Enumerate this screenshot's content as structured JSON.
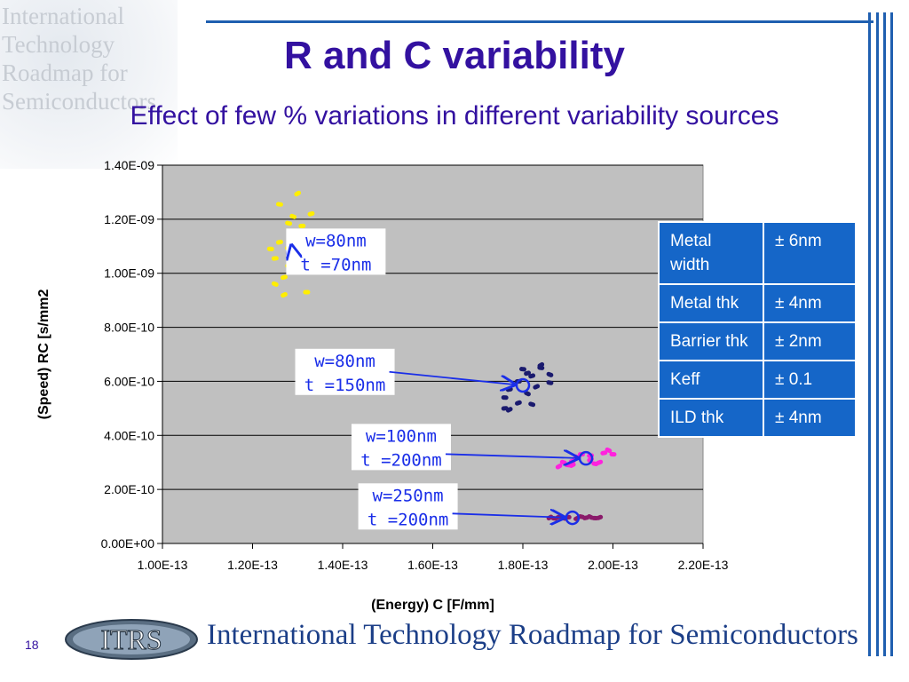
{
  "slide": {
    "title": "R and C variability",
    "subtitle": "Effect of few % variations in different variability sources",
    "slide_number": "18",
    "footer_text": "International Technology Roadmap for Semiconductors",
    "logo_text": "ITRS",
    "corner_logo_lines": [
      "International",
      "Technology",
      "Roadmap for",
      "Semiconductors"
    ]
  },
  "chart_data": {
    "type": "scatter",
    "xlabel": "(Energy) C [F/mm]",
    "ylabel": "(Speed) RC [s/mm2",
    "xlim": [
      1e-13,
      2.2e-13
    ],
    "ylim": [
      0,
      1.4e-09
    ],
    "xticks": [
      "1.00E-13",
      "1.20E-13",
      "1.40E-13",
      "1.60E-13",
      "1.80E-13",
      "2.00E-13",
      "2.20E-13"
    ],
    "yticks": [
      "0.00E+00",
      "2.00E-10",
      "4.00E-10",
      "6.00E-10",
      "8.00E-10",
      "1.00E-09",
      "1.20E-09",
      "1.40E-09"
    ],
    "grid": "horizontal",
    "legend": "none",
    "series": [
      {
        "color": "#ffee00",
        "nominal": {
          "x": 1.29e-13,
          "y": 1.075e-09
        },
        "points": [
          {
            "x": 1.3e-13,
            "y": 1.295e-09
          },
          {
            "x": 1.26e-13,
            "y": 1.255e-09
          },
          {
            "x": 1.33e-13,
            "y": 1.22e-09
          },
          {
            "x": 1.29e-13,
            "y": 1.21e-09
          },
          {
            "x": 1.31e-13,
            "y": 1.175e-09
          },
          {
            "x": 1.29e-13,
            "y": 1.15e-09
          },
          {
            "x": 1.32e-13,
            "y": 1.145e-09
          },
          {
            "x": 1.26e-13,
            "y": 1.115e-09
          },
          {
            "x": 1.3e-13,
            "y": 1.12e-09
          },
          {
            "x": 1.24e-13,
            "y": 1.09e-09
          },
          {
            "x": 1.28e-13,
            "y": 1.095e-09
          },
          {
            "x": 1.31e-13,
            "y": 1.06e-09
          },
          {
            "x": 1.25e-13,
            "y": 1.055e-09
          },
          {
            "x": 1.28e-13,
            "y": 1.03e-09
          },
          {
            "x": 1.3e-13,
            "y": 1.01e-09
          },
          {
            "x": 1.27e-13,
            "y": 9.85e-10
          },
          {
            "x": 1.25e-13,
            "y": 9.6e-10
          },
          {
            "x": 1.32e-13,
            "y": 9.3e-10
          },
          {
            "x": 1.27e-13,
            "y": 9.2e-10
          },
          {
            "x": 1.28e-13,
            "y": 1.185e-09
          }
        ]
      },
      {
        "color": "#1a1a6e",
        "nominal": {
          "x": 1.8e-13,
          "y": 5.85e-10
        },
        "points": [
          {
            "x": 1.84e-13,
            "y": 6.6e-10
          },
          {
            "x": 1.8e-13,
            "y": 6.45e-10
          },
          {
            "x": 1.82e-13,
            "y": 6.2e-10
          },
          {
            "x": 1.86e-13,
            "y": 6.25e-10
          },
          {
            "x": 1.79e-13,
            "y": 6e-10
          },
          {
            "x": 1.83e-13,
            "y": 5.8e-10
          },
          {
            "x": 1.86e-13,
            "y": 5.95e-10
          },
          {
            "x": 1.77e-13,
            "y": 5.7e-10
          },
          {
            "x": 1.81e-13,
            "y": 5.55e-10
          },
          {
            "x": 1.76e-13,
            "y": 5.4e-10
          },
          {
            "x": 1.79e-13,
            "y": 5.2e-10
          },
          {
            "x": 1.82e-13,
            "y": 5.15e-10
          },
          {
            "x": 1.76e-13,
            "y": 5e-10
          },
          {
            "x": 1.77e-13,
            "y": 4.95e-10
          },
          {
            "x": 1.84e-13,
            "y": 6.5e-10
          },
          {
            "x": 1.81e-13,
            "y": 6.3e-10
          }
        ]
      },
      {
        "color": "#ff22dd",
        "nominal": {
          "x": 1.94e-13,
          "y": 3.15e-10
        },
        "points": [
          {
            "x": 1.88e-13,
            "y": 2.85e-10
          },
          {
            "x": 1.9e-13,
            "y": 2.9e-10
          },
          {
            "x": 1.91e-13,
            "y": 3.05e-10
          },
          {
            "x": 1.92e-13,
            "y": 3.2e-10
          },
          {
            "x": 1.93e-13,
            "y": 3.3e-10
          },
          {
            "x": 1.95e-13,
            "y": 3.1e-10
          },
          {
            "x": 1.96e-13,
            "y": 2.95e-10
          },
          {
            "x": 1.98e-13,
            "y": 3.35e-10
          },
          {
            "x": 1.99e-13,
            "y": 3.45e-10
          },
          {
            "x": 2e-13,
            "y": 3.3e-10
          },
          {
            "x": 1.97e-13,
            "y": 3e-10
          },
          {
            "x": 1.89e-13,
            "y": 3e-10
          },
          {
            "x": 1.95e-13,
            "y": 3.25e-10
          },
          {
            "x": 1.91e-13,
            "y": 2.9e-10
          }
        ]
      },
      {
        "color": "#8a1a6a",
        "nominal": {
          "x": 1.91e-13,
          "y": 9.5e-11
        },
        "points": [
          {
            "x": 1.86e-13,
            "y": 9.6e-11
          },
          {
            "x": 1.87e-13,
            "y": 9.3e-11
          },
          {
            "x": 1.88e-13,
            "y": 9.8e-11
          },
          {
            "x": 1.89e-13,
            "y": 9.4e-11
          },
          {
            "x": 1.9e-13,
            "y": 9.7e-11
          },
          {
            "x": 1.92e-13,
            "y": 9.3e-11
          },
          {
            "x": 1.93e-13,
            "y": 9.9e-11
          },
          {
            "x": 1.94e-13,
            "y": 9.5e-11
          },
          {
            "x": 1.95e-13,
            "y": 9.8e-11
          },
          {
            "x": 1.96e-13,
            "y": 9.4e-11
          },
          {
            "x": 1.97e-13,
            "y": 9.6e-11
          }
        ]
      }
    ],
    "annotations": [
      {
        "lines": [
          "w=80nm",
          "t =70nm"
        ],
        "text_x": 1.385e-13,
        "text_y": 1.08e-09,
        "target_x": 1.29e-13,
        "target_y": 1.075e-09
      },
      {
        "lines": [
          "w=80nm",
          "t =150nm"
        ],
        "text_x": 1.405e-13,
        "text_y": 6.35e-10,
        "target_x": 1.8e-13,
        "target_y": 5.85e-10
      },
      {
        "lines": [
          "w=100nm",
          "t =200nm"
        ],
        "text_x": 1.53e-13,
        "text_y": 3.57e-10,
        "target_x": 1.94e-13,
        "target_y": 3.15e-10
      },
      {
        "lines": [
          "w=250nm",
          "t =200nm"
        ],
        "text_x": 1.545e-13,
        "text_y": 1.37e-10,
        "target_x": 1.91e-13,
        "target_y": 9.5e-11
      }
    ]
  },
  "variability_table": {
    "rows": [
      {
        "source": "Metal width",
        "variation": "± 6nm"
      },
      {
        "source": "Metal thk",
        "variation": "± 4nm"
      },
      {
        "source": "Barrier thk",
        "variation": "± 2nm"
      },
      {
        "source": "Keff",
        "variation": "± 0.1"
      },
      {
        "source": "ILD thk",
        "variation": "± 4nm"
      }
    ]
  }
}
